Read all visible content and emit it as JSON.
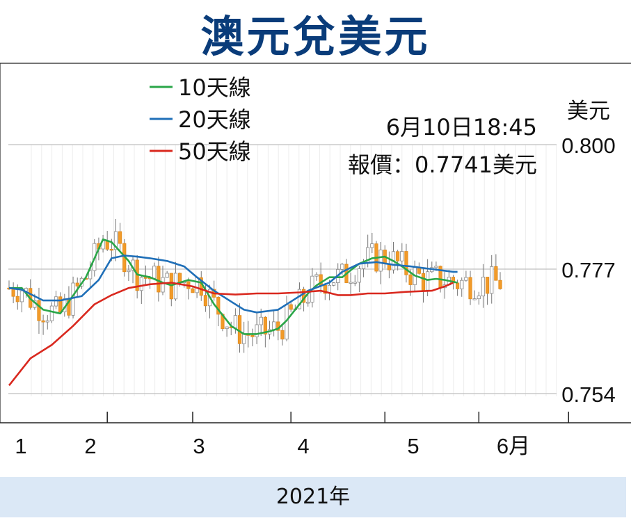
{
  "title": "澳元兌美元",
  "footer_label": "2021年",
  "chart_data": {
    "type": "candlestick",
    "title": "澳元兌美元",
    "ylabel": "美元",
    "ylim": [
      0.754,
      0.8
    ],
    "yticks": [
      "0.800",
      "0.777",
      "0.754"
    ],
    "xticks": [
      "1",
      "2",
      "3",
      "4",
      "5",
      "6月"
    ],
    "tick_days": [
      0,
      23,
      43,
      66,
      88,
      110,
      131
    ],
    "last_day": 115,
    "timestamp": "6月10日18:45",
    "quote": "報價：0.7741美元",
    "grid": "horizontal",
    "legend_position": "top-left",
    "series": [
      {
        "name": "10天線",
        "color": "#2aa648",
        "x": [
          0,
          3,
          5,
          8,
          12,
          14,
          18,
          22,
          24,
          28,
          30,
          33,
          36,
          38,
          42,
          45,
          48,
          52,
          55,
          58,
          61,
          63,
          65,
          68,
          70,
          72,
          75,
          78,
          80,
          82,
          85,
          88,
          90,
          92,
          95,
          98,
          100,
          102,
          105
        ],
        "y": [
          0.7735,
          0.7735,
          0.7715,
          0.7695,
          0.7688,
          0.771,
          0.7755,
          0.7825,
          0.782,
          0.7785,
          0.776,
          0.7755,
          0.7745,
          0.774,
          0.775,
          0.7745,
          0.7705,
          0.7665,
          0.765,
          0.765,
          0.7655,
          0.766,
          0.7675,
          0.7705,
          0.7725,
          0.774,
          0.7755,
          0.7755,
          0.7768,
          0.778,
          0.779,
          0.7793,
          0.7785,
          0.7775,
          0.7758,
          0.775,
          0.7752,
          0.775,
          0.7745
        ]
      },
      {
        "name": "20天線",
        "color": "#1f6fb8",
        "x": [
          0,
          3,
          8,
          12,
          17,
          21,
          24,
          27,
          30,
          33,
          37,
          41,
          44,
          48,
          52,
          55,
          58,
          63,
          66,
          70,
          75,
          78,
          82,
          86,
          90,
          94,
          99,
          104,
          105
        ],
        "y": [
          0.7735,
          0.7732,
          0.7712,
          0.7712,
          0.772,
          0.775,
          0.779,
          0.7795,
          0.7793,
          0.779,
          0.7785,
          0.7775,
          0.7755,
          0.773,
          0.771,
          0.7695,
          0.769,
          0.7695,
          0.771,
          0.773,
          0.7745,
          0.7765,
          0.778,
          0.7783,
          0.7778,
          0.7775,
          0.777,
          0.7765,
          0.7765
        ]
      },
      {
        "name": "50天線",
        "color": "#d9281e",
        "x": [
          0,
          5,
          10,
          15,
          20,
          24,
          28,
          33,
          38,
          43,
          48,
          53,
          58,
          63,
          68,
          73,
          77,
          80,
          84,
          88,
          93,
          99,
          102,
          104
        ],
        "y": [
          0.7555,
          0.7605,
          0.763,
          0.7665,
          0.7705,
          0.7722,
          0.7735,
          0.7742,
          0.7745,
          0.7738,
          0.7725,
          0.7723,
          0.7725,
          0.7725,
          0.7727,
          0.773,
          0.7722,
          0.7722,
          0.7725,
          0.7725,
          0.7728,
          0.773,
          0.7738,
          0.7745
        ]
      }
    ]
  }
}
